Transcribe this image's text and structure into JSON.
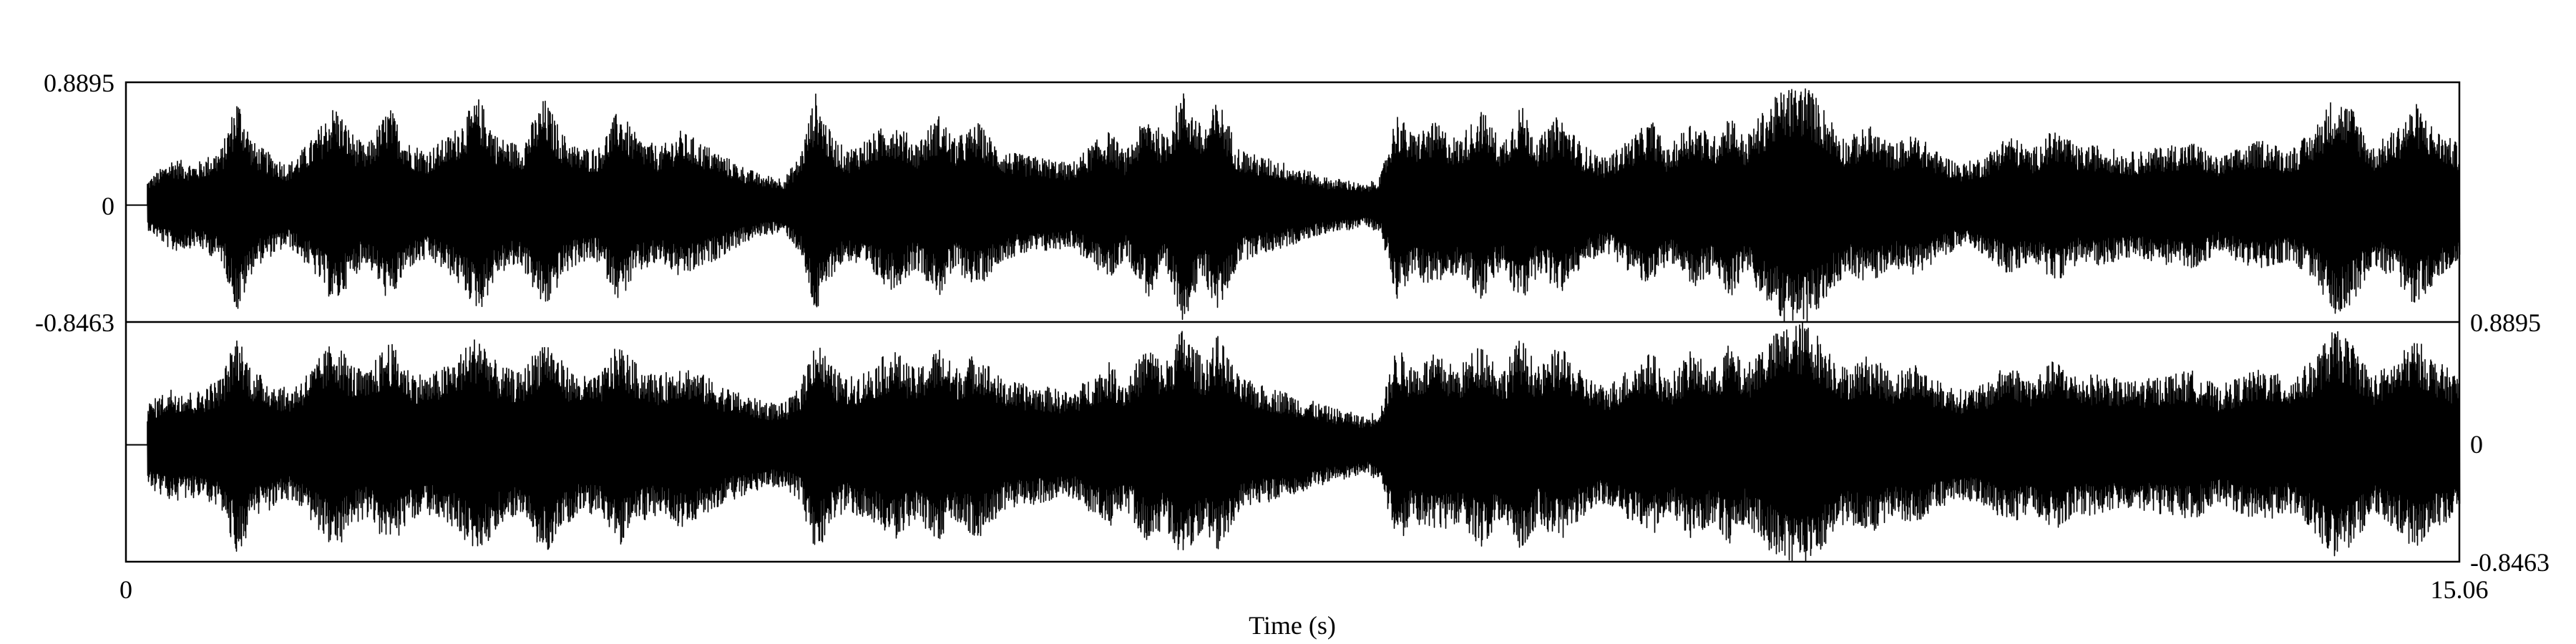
{
  "chart_data": {
    "type": "waveform",
    "xlabel": "Time (s)",
    "x_range": [
      0,
      15.06
    ],
    "x_tick_labels": [
      "0",
      "15.06"
    ],
    "grid": false,
    "colors": {
      "wave": "#000000",
      "frame": "#000000",
      "background": "#ffffff"
    },
    "channels": [
      {
        "name": "",
        "ylim": [
          -0.8463,
          0.8895
        ],
        "tick_labels": {
          "max": "0.8895",
          "zero": "0",
          "min": "-0.8463"
        },
        "tick_side": "left",
        "leading_silence_s": 0.14,
        "envelope": [
          [
            0.0,
            0.0
          ],
          [
            0.14,
            0.18
          ],
          [
            0.3,
            0.34
          ],
          [
            0.45,
            0.3
          ],
          [
            0.62,
            0.42
          ],
          [
            0.72,
            0.8
          ],
          [
            0.82,
            0.46
          ],
          [
            0.95,
            0.36
          ],
          [
            1.05,
            0.3
          ],
          [
            1.2,
            0.48
          ],
          [
            1.35,
            0.74
          ],
          [
            1.45,
            0.54
          ],
          [
            1.55,
            0.42
          ],
          [
            1.7,
            0.72
          ],
          [
            1.82,
            0.46
          ],
          [
            1.95,
            0.4
          ],
          [
            2.1,
            0.52
          ],
          [
            2.28,
            0.78
          ],
          [
            2.4,
            0.5
          ],
          [
            2.55,
            0.44
          ],
          [
            2.7,
            0.78
          ],
          [
            2.82,
            0.52
          ],
          [
            2.92,
            0.42
          ],
          [
            3.05,
            0.42
          ],
          [
            3.18,
            0.7
          ],
          [
            3.3,
            0.5
          ],
          [
            3.45,
            0.42
          ],
          [
            3.58,
            0.54
          ],
          [
            3.68,
            0.48
          ],
          [
            3.8,
            0.4
          ],
          [
            3.95,
            0.3
          ],
          [
            4.1,
            0.22
          ],
          [
            4.25,
            0.2
          ],
          [
            4.35,
            0.36
          ],
          [
            4.45,
            0.82
          ],
          [
            4.55,
            0.52
          ],
          [
            4.65,
            0.4
          ],
          [
            4.8,
            0.5
          ],
          [
            4.95,
            0.62
          ],
          [
            5.1,
            0.46
          ],
          [
            5.25,
            0.66
          ],
          [
            5.35,
            0.48
          ],
          [
            5.5,
            0.6
          ],
          [
            5.65,
            0.4
          ],
          [
            5.8,
            0.36
          ],
          [
            5.95,
            0.34
          ],
          [
            6.1,
            0.3
          ],
          [
            6.25,
            0.46
          ],
          [
            6.35,
            0.54
          ],
          [
            6.45,
            0.38
          ],
          [
            6.6,
            0.68
          ],
          [
            6.7,
            0.5
          ],
          [
            6.82,
            0.84
          ],
          [
            6.95,
            0.55
          ],
          [
            7.05,
            0.78
          ],
          [
            7.18,
            0.42
          ],
          [
            7.3,
            0.36
          ],
          [
            7.45,
            0.32
          ],
          [
            7.6,
            0.26
          ],
          [
            7.75,
            0.2
          ],
          [
            7.9,
            0.18
          ],
          [
            8.0,
            0.14
          ],
          [
            8.1,
            0.22
          ],
          [
            8.2,
            0.68
          ],
          [
            8.3,
            0.52
          ],
          [
            8.45,
            0.6
          ],
          [
            8.6,
            0.48
          ],
          [
            8.75,
            0.7
          ],
          [
            8.88,
            0.46
          ],
          [
            9.0,
            0.74
          ],
          [
            9.12,
            0.48
          ],
          [
            9.25,
            0.66
          ],
          [
            9.4,
            0.44
          ],
          [
            9.55,
            0.34
          ],
          [
            9.7,
            0.48
          ],
          [
            9.85,
            0.62
          ],
          [
            9.95,
            0.4
          ],
          [
            10.1,
            0.62
          ],
          [
            10.25,
            0.5
          ],
          [
            10.35,
            0.68
          ],
          [
            10.45,
            0.48
          ],
          [
            10.55,
            0.66
          ],
          [
            10.7,
            0.85
          ],
          [
            10.85,
            0.88
          ],
          [
            10.95,
            0.72
          ],
          [
            11.1,
            0.48
          ],
          [
            11.25,
            0.58
          ],
          [
            11.4,
            0.44
          ],
          [
            11.55,
            0.52
          ],
          [
            11.7,
            0.38
          ],
          [
            11.85,
            0.3
          ],
          [
            12.0,
            0.36
          ],
          [
            12.15,
            0.52
          ],
          [
            12.3,
            0.4
          ],
          [
            12.45,
            0.56
          ],
          [
            12.6,
            0.42
          ],
          [
            12.75,
            0.44
          ],
          [
            12.9,
            0.38
          ],
          [
            13.05,
            0.4
          ],
          [
            13.2,
            0.44
          ],
          [
            13.35,
            0.46
          ],
          [
            13.5,
            0.34
          ],
          [
            13.65,
            0.42
          ],
          [
            13.8,
            0.48
          ],
          [
            13.95,
            0.4
          ],
          [
            14.1,
            0.52
          ],
          [
            14.25,
            0.8
          ],
          [
            14.38,
            0.7
          ],
          [
            14.5,
            0.42
          ],
          [
            14.65,
            0.56
          ],
          [
            14.78,
            0.74
          ],
          [
            14.9,
            0.56
          ],
          [
            15.06,
            0.44
          ]
        ]
      },
      {
        "name": "",
        "ylim": [
          -0.8463,
          0.8895
        ],
        "tick_labels": {
          "max": "0.8895",
          "zero": "0",
          "min": "-0.8463"
        },
        "tick_side": "right",
        "leading_silence_s": 0.14,
        "envelope": [
          [
            0.0,
            0.0
          ],
          [
            0.14,
            0.3
          ],
          [
            0.3,
            0.42
          ],
          [
            0.45,
            0.38
          ],
          [
            0.62,
            0.5
          ],
          [
            0.72,
            0.82
          ],
          [
            0.82,
            0.54
          ],
          [
            0.95,
            0.46
          ],
          [
            1.05,
            0.4
          ],
          [
            1.2,
            0.56
          ],
          [
            1.35,
            0.78
          ],
          [
            1.45,
            0.6
          ],
          [
            1.55,
            0.52
          ],
          [
            1.7,
            0.76
          ],
          [
            1.82,
            0.56
          ],
          [
            1.95,
            0.5
          ],
          [
            2.1,
            0.6
          ],
          [
            2.28,
            0.82
          ],
          [
            2.4,
            0.58
          ],
          [
            2.55,
            0.52
          ],
          [
            2.7,
            0.8
          ],
          [
            2.82,
            0.6
          ],
          [
            2.92,
            0.5
          ],
          [
            3.05,
            0.5
          ],
          [
            3.18,
            0.74
          ],
          [
            3.3,
            0.58
          ],
          [
            3.45,
            0.5
          ],
          [
            3.58,
            0.6
          ],
          [
            3.68,
            0.54
          ],
          [
            3.8,
            0.46
          ],
          [
            3.95,
            0.38
          ],
          [
            4.1,
            0.32
          ],
          [
            4.25,
            0.3
          ],
          [
            4.35,
            0.42
          ],
          [
            4.45,
            0.8
          ],
          [
            4.55,
            0.58
          ],
          [
            4.65,
            0.48
          ],
          [
            4.8,
            0.56
          ],
          [
            4.95,
            0.7
          ],
          [
            5.1,
            0.54
          ],
          [
            5.25,
            0.72
          ],
          [
            5.35,
            0.56
          ],
          [
            5.5,
            0.68
          ],
          [
            5.65,
            0.48
          ],
          [
            5.8,
            0.44
          ],
          [
            5.95,
            0.42
          ],
          [
            6.1,
            0.38
          ],
          [
            6.25,
            0.52
          ],
          [
            6.35,
            0.6
          ],
          [
            6.45,
            0.46
          ],
          [
            6.6,
            0.74
          ],
          [
            6.7,
            0.58
          ],
          [
            6.82,
            0.86
          ],
          [
            6.95,
            0.62
          ],
          [
            7.05,
            0.8
          ],
          [
            7.18,
            0.5
          ],
          [
            7.3,
            0.44
          ],
          [
            7.45,
            0.4
          ],
          [
            7.6,
            0.34
          ],
          [
            7.75,
            0.28
          ],
          [
            7.9,
            0.24
          ],
          [
            8.0,
            0.2
          ],
          [
            8.1,
            0.28
          ],
          [
            8.2,
            0.72
          ],
          [
            8.3,
            0.58
          ],
          [
            8.45,
            0.66
          ],
          [
            8.6,
            0.56
          ],
          [
            8.75,
            0.76
          ],
          [
            8.88,
            0.54
          ],
          [
            9.0,
            0.78
          ],
          [
            9.12,
            0.56
          ],
          [
            9.25,
            0.72
          ],
          [
            9.4,
            0.52
          ],
          [
            9.55,
            0.42
          ],
          [
            9.7,
            0.56
          ],
          [
            9.85,
            0.68
          ],
          [
            9.95,
            0.48
          ],
          [
            10.1,
            0.68
          ],
          [
            10.25,
            0.56
          ],
          [
            10.35,
            0.74
          ],
          [
            10.45,
            0.56
          ],
          [
            10.55,
            0.72
          ],
          [
            10.7,
            0.86
          ],
          [
            10.85,
            0.9
          ],
          [
            10.95,
            0.76
          ],
          [
            11.1,
            0.56
          ],
          [
            11.25,
            0.66
          ],
          [
            11.4,
            0.52
          ],
          [
            11.55,
            0.6
          ],
          [
            11.7,
            0.46
          ],
          [
            11.85,
            0.4
          ],
          [
            12.0,
            0.44
          ],
          [
            12.15,
            0.6
          ],
          [
            12.3,
            0.48
          ],
          [
            12.45,
            0.62
          ],
          [
            12.6,
            0.5
          ],
          [
            12.75,
            0.52
          ],
          [
            12.9,
            0.46
          ],
          [
            13.05,
            0.48
          ],
          [
            13.2,
            0.52
          ],
          [
            13.35,
            0.54
          ],
          [
            13.5,
            0.42
          ],
          [
            13.65,
            0.5
          ],
          [
            13.8,
            0.56
          ],
          [
            13.95,
            0.48
          ],
          [
            14.1,
            0.6
          ],
          [
            14.25,
            0.84
          ],
          [
            14.38,
            0.74
          ],
          [
            14.5,
            0.5
          ],
          [
            14.65,
            0.62
          ],
          [
            14.78,
            0.78
          ],
          [
            14.9,
            0.62
          ],
          [
            15.06,
            0.5
          ]
        ]
      }
    ]
  }
}
